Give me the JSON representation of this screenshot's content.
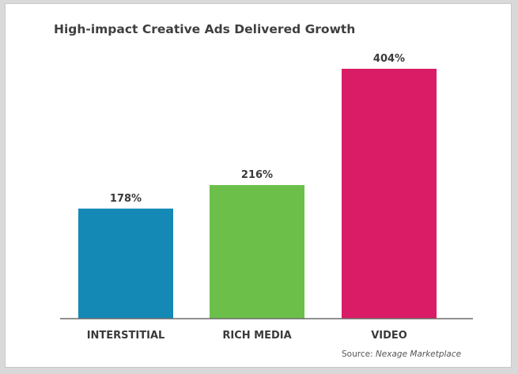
{
  "chart_data": {
    "type": "bar",
    "title": "High-impact Creative Ads Delivered Growth",
    "categories": [
      "INTERSTITIAL",
      "RICH MEDIA",
      "VIDEO"
    ],
    "values": [
      178,
      216,
      404
    ],
    "data_labels": [
      "178%",
      "216%",
      "404%"
    ],
    "colors": [
      "#1589b5",
      "#6cc04a",
      "#d91c65"
    ],
    "ylim": [
      0,
      404
    ],
    "grid": false,
    "legend": "none"
  },
  "source": {
    "prefix": "Source: ",
    "name": "Nexage Marketplace"
  }
}
